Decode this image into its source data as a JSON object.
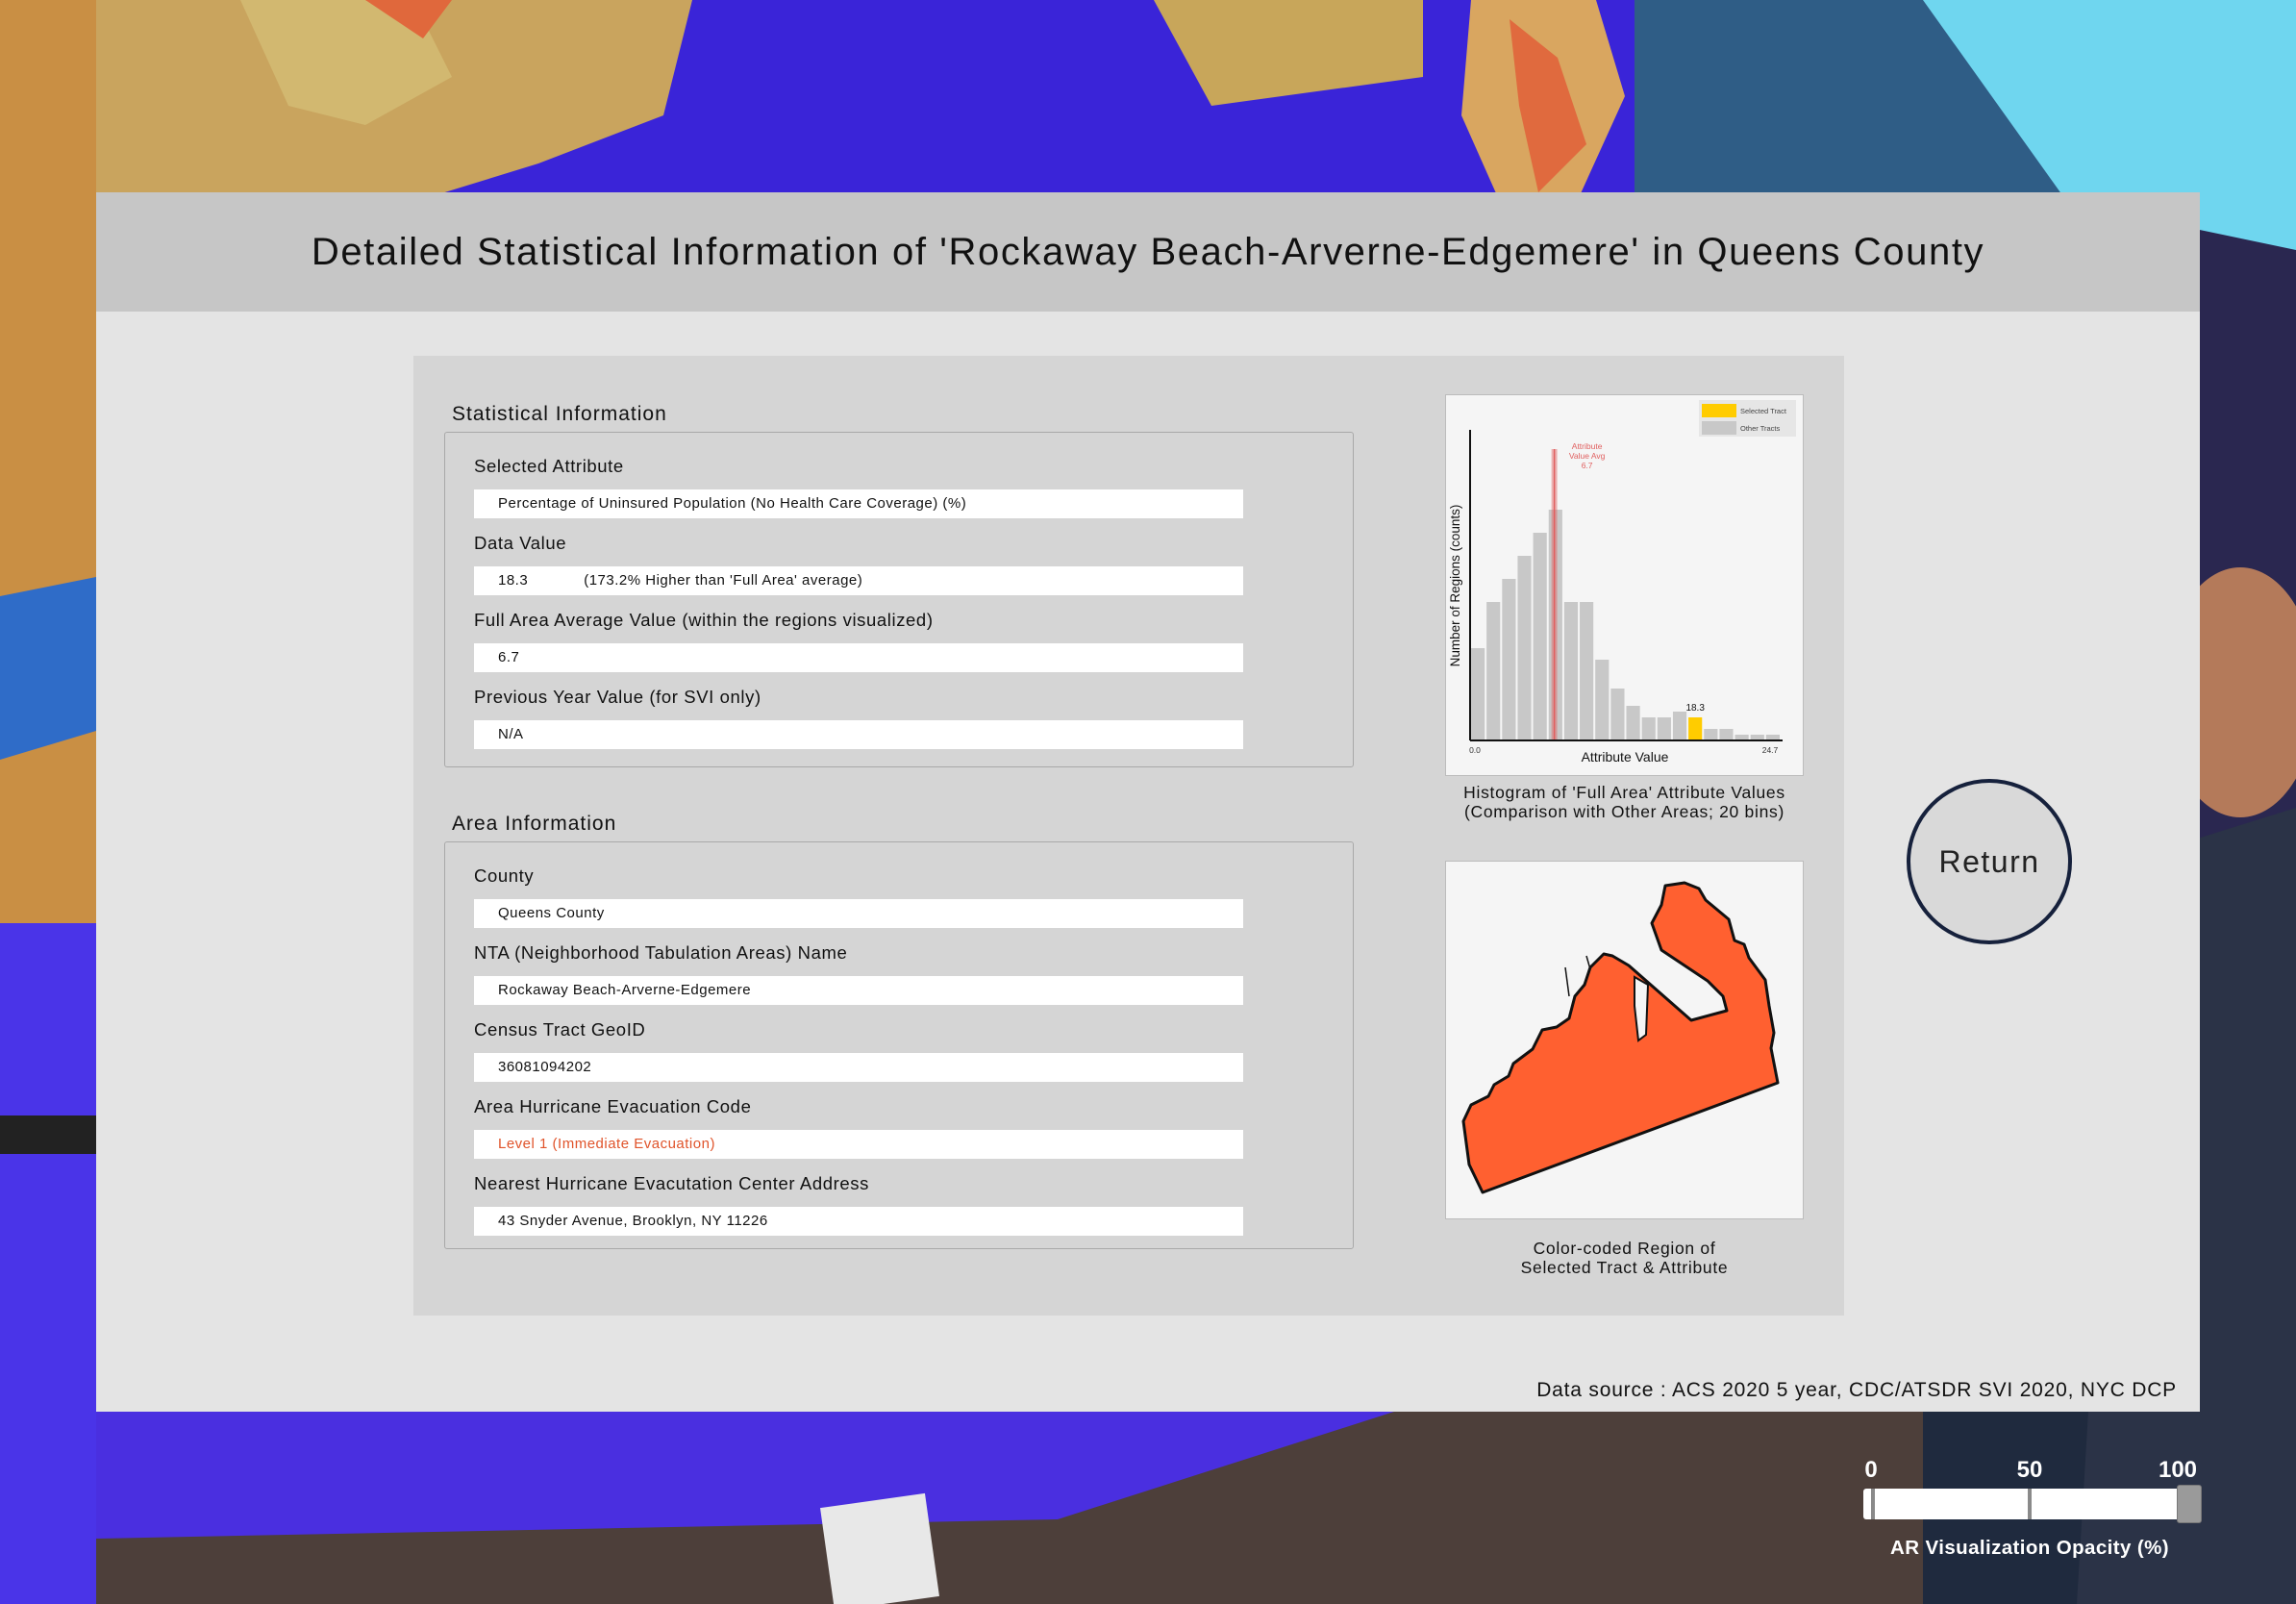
{
  "page_title": "Detailed Statistical Information of 'Rockaway Beach-Arverne-Edgemere' in Queens County",
  "data_source": "Data source : ACS 2020 5 year, CDC/ATSDR SVI 2020, NYC DCP",
  "statistical": {
    "title": "Statistical Information",
    "selected_attribute_label": "Selected Attribute",
    "selected_attribute_value": "Percentage of Uninsured Population (No Health Care Coverage) (%)",
    "data_value_label": "Data Value",
    "data_value": "18.3",
    "data_value_note": "(173.2% Higher than 'Full Area' average)",
    "full_avg_label": "Full Area Average Value (within the regions visualized)",
    "full_avg_value": "6.7",
    "prev_year_label": "Previous Year Value (for SVI only)",
    "prev_year_value": "N/A"
  },
  "area": {
    "title": "Area Information",
    "county_label": "County",
    "county_value": "Queens County",
    "nta_label": "NTA (Neighborhood Tabulation Areas) Name",
    "nta_value": "Rockaway Beach-Arverne-Edgemere",
    "geoid_label": "Census Tract GeoID",
    "geoid_value": "36081094202",
    "evac_code_label": "Area Hurricane Evacuation Code",
    "evac_code_value": "Level 1 (Immediate Evacuation)",
    "evac_center_label": "Nearest Hurricane Evacutation Center Address",
    "evac_center_value": "43 Snyder Avenue, Brooklyn, NY 11226"
  },
  "histogram_caption_line1": "Histogram of 'Full Area' Attribute Values",
  "histogram_caption_line2": "(Comparison with Other Areas; 20 bins)",
  "map_caption_line1": "Color-coded Region of",
  "map_caption_line2": "Selected Tract & Attribute",
  "return_label": "Return",
  "opacity_slider": {
    "label": "AR Visualization Opacity (%)",
    "ticks": [
      "0",
      "50",
      "100"
    ],
    "value": 100
  },
  "colors": {
    "selected_tract": "#ffcc00",
    "other_tracts": "#c8c8c8",
    "avg_line": "#e06060",
    "region_fill": "#ff6030",
    "evac_text": "#e0542b"
  },
  "chart_data": {
    "type": "bar",
    "title": "",
    "xlabel": "Attribute Value",
    "ylabel": "Number of Regions (counts)",
    "x_tick_labels": [
      "0.0",
      "24.7"
    ],
    "xlim": [
      0.0,
      24.7
    ],
    "bins": 20,
    "values": [
      16,
      24,
      28,
      32,
      36,
      40,
      24,
      24,
      14,
      9,
      6,
      4,
      4,
      5,
      4,
      2,
      2,
      1,
      1,
      1
    ],
    "selected_bin_index": 14,
    "selected_value": 18.3,
    "selected_label": "18.3",
    "average_value": 6.7,
    "average_label": [
      "Attribute",
      "Value Avg",
      "6.7"
    ],
    "legend": [
      "Selected Tract",
      "Other Tracts"
    ],
    "legend_position": "top-right"
  }
}
